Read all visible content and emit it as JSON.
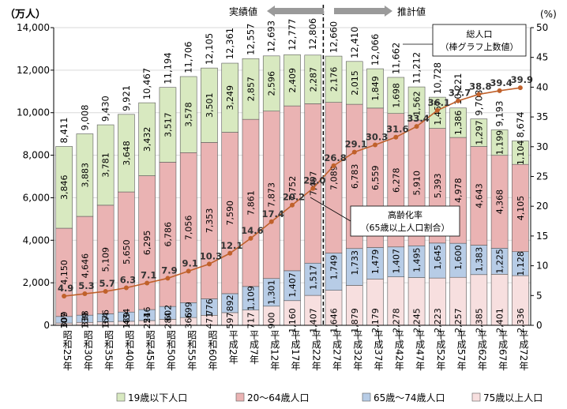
{
  "chart_data": {
    "type": "bar",
    "ylabel_left": "（万人）",
    "ylabel_right": "(%)",
    "ylim_left": [
      0,
      14000
    ],
    "ylim_right": [
      0,
      50
    ],
    "yticks_left": [
      "0",
      "2,000",
      "4,000",
      "6,000",
      "8,000",
      "10,000",
      "12,000",
      "14,000"
    ],
    "yticks_right": [
      "0",
      "5",
      "10",
      "15",
      "20",
      "25",
      "30",
      "35",
      "40",
      "45",
      "50"
    ],
    "categories": [
      "昭和25年",
      "昭和30年",
      "昭和35年",
      "昭和40年",
      "昭和45年",
      "昭和50年",
      "昭和55年",
      "昭和60年",
      "平成2年",
      "平成7年",
      "平成12年",
      "平成17年",
      "平成22年",
      "平成27年",
      "平成32年",
      "平成37年",
      "平成42年",
      "平成47年",
      "平成52年",
      "平成57年",
      "平成62年",
      "平成67年",
      "平成72年"
    ],
    "series": [
      {
        "name": "75歳以上人口",
        "color": "#f7dfdf",
        "values": [
          107,
          139,
          164,
          189,
          224,
          284,
          366,
          471,
          597,
          717,
          900,
          1160,
          1407,
          1646,
          1879,
          2179,
          2278,
          2245,
          2223,
          2257,
          2385,
          2401,
          2336
        ]
      },
      {
        "name": "65歳～74歳人口",
        "color": "#b7cce6",
        "values": [
          309,
          338,
          376,
          434,
          516,
          602,
          699,
          776,
          892,
          1109,
          1301,
          1407,
          1517,
          1749,
          1733,
          1479,
          1407,
          1495,
          1645,
          1600,
          1383,
          1225,
          1128
        ]
      },
      {
        "name": "20～64歳人口",
        "color": "#eab3b3",
        "values": [
          4150,
          4646,
          5109,
          5650,
          6295,
          6786,
          7056,
          7353,
          7590,
          7861,
          7873,
          7752,
          7497,
          7089,
          6783,
          6559,
          6278,
          5910,
          5393,
          4978,
          4643,
          4368,
          4105
        ]
      },
      {
        "name": "19歳以下人口",
        "color": "#d8e9c0",
        "values": [
          3846,
          3883,
          3781,
          3648,
          3432,
          3517,
          3578,
          3501,
          3249,
          2857,
          2596,
          2409,
          2287,
          2176,
          2015,
          1849,
          1698,
          1562,
          1467,
          1386,
          1297,
          1199,
          1104
        ]
      }
    ],
    "totals": [
      8411,
      9008,
      9430,
      9921,
      10467,
      11194,
      11706,
      12105,
      12361,
      12557,
      12693,
      12777,
      12806,
      12660,
      12410,
      12066,
      11662,
      11212,
      10728,
      10221,
      9708,
      9193,
      8674
    ],
    "total_labels": [
      "8,411",
      "9,008",
      "9,430",
      "9,921",
      "10,467",
      "11,194",
      "11,706",
      "12,105",
      "12,361",
      "12,557",
      "12,693",
      "12,777",
      "12,806",
      "12,660",
      "12,410",
      "12,066",
      "11,662",
      "11,212",
      "10,728",
      "10,221",
      "9,708",
      "9,193",
      "8,674"
    ],
    "line": {
      "name": "高齢化率",
      "color": "#c0612b",
      "values": [
        4.9,
        5.3,
        5.7,
        6.3,
        7.1,
        7.9,
        9.1,
        10.3,
        12.1,
        14.6,
        17.4,
        20.2,
        23.0,
        26.8,
        29.1,
        30.3,
        31.6,
        33.4,
        36.1,
        37.7,
        38.8,
        39.4,
        39.9
      ]
    },
    "divider_after_index": 12,
    "legend_position": "bottom"
  },
  "annotations": {
    "actual": "実績値",
    "estimate": "推計値",
    "total_box_line1": "総人口",
    "total_box_line2": "（棒グラフ上数値）",
    "rate_box_line1": "高齢化率",
    "rate_box_line2": "（65歳以上人口割合）"
  }
}
